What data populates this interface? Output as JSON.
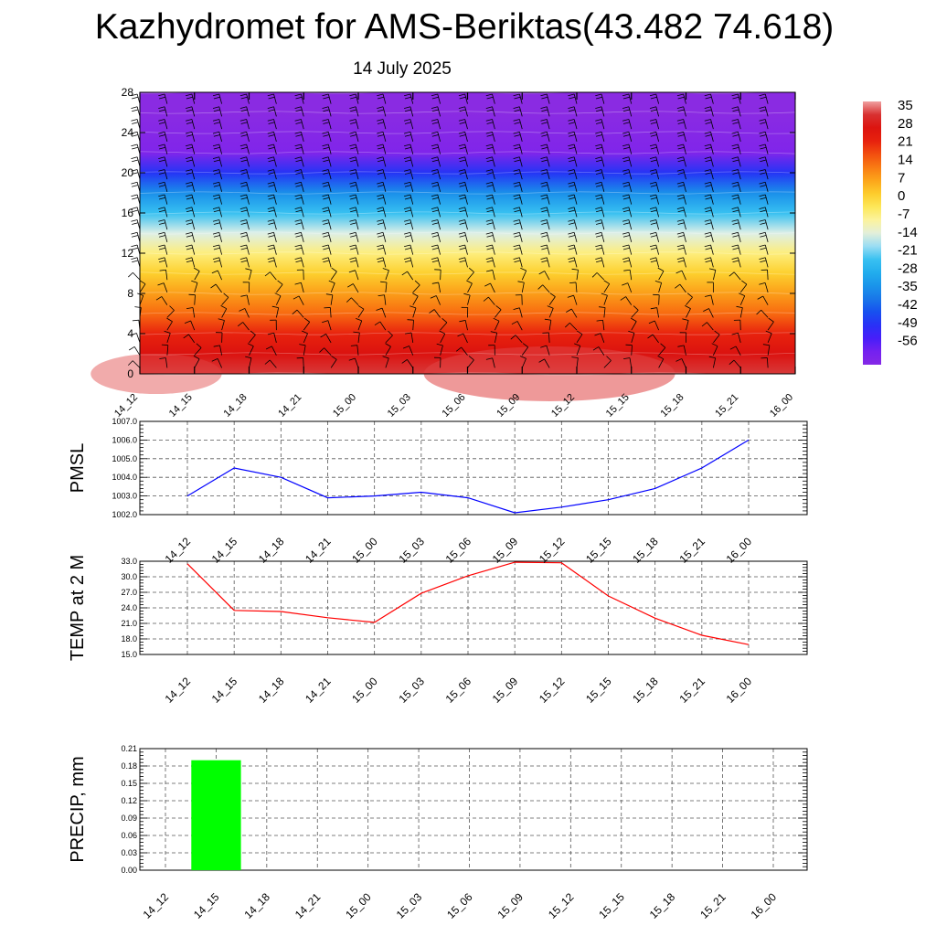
{
  "title": "Kazhydromet for AMS-Beriktas(43.482 74.618)",
  "subtitle": "14 July 2025",
  "colorbar_labels": [
    "35",
    "28",
    "21",
    "14",
    "7",
    "0",
    "-7",
    "-14",
    "-21",
    "-28",
    "-35",
    "-42",
    "-49",
    "-56"
  ],
  "chart_data": [
    {
      "type": "heatmap",
      "description_vars": "temperature cross-section with wind barbs",
      "x_categories": [
        "14_12",
        "14_15",
        "14_18",
        "14_21",
        "15_00",
        "15_03",
        "15_06",
        "15_09",
        "15_12",
        "15_15",
        "15_18",
        "15_21",
        "16_00"
      ],
      "y_ticks": [
        "0",
        "4",
        "8",
        "12",
        "16",
        "20",
        "24",
        "28"
      ],
      "ylim": [
        0,
        28
      ],
      "levels": [
        0,
        2,
        4,
        6,
        8,
        10,
        12,
        14,
        16,
        18,
        20,
        22,
        24,
        26,
        28
      ],
      "values_at_levels": [
        32,
        27,
        21,
        14,
        8,
        2,
        -5,
        -13,
        -22,
        -32,
        -45,
        -58,
        -60,
        -62,
        -64
      ],
      "colorbar_range": [
        -60,
        36
      ],
      "colorbar_ticks": [
        35,
        28,
        21,
        14,
        7,
        0,
        -7,
        -14,
        -21,
        -28,
        -35,
        -42,
        -49,
        -56
      ]
    },
    {
      "type": "line",
      "ylabel": "PMSL",
      "categories": [
        "14_12",
        "14_15",
        "14_18",
        "14_21",
        "15_00",
        "15_03",
        "15_06",
        "15_09",
        "15_12",
        "15_15",
        "15_18",
        "15_21",
        "16_00"
      ],
      "values": [
        1003.0,
        1004.5,
        1004.0,
        1002.9,
        1003.0,
        1003.2,
        1002.9,
        1002.1,
        1002.4,
        1002.8,
        1003.4,
        1004.5,
        1006.0
      ],
      "ylim": [
        1002.0,
        1007.0
      ],
      "y_tick_labels": [
        "1002.0",
        "1003.0",
        "1004.0",
        "1005.0",
        "1006.0",
        "1007.0"
      ],
      "color": "#0000ff",
      "grid": true
    },
    {
      "type": "line",
      "ylabel": "TEMP at 2 M",
      "categories": [
        "14_12",
        "14_15",
        "14_18",
        "14_21",
        "15_00",
        "15_03",
        "15_06",
        "15_09",
        "15_12",
        "15_15",
        "15_18",
        "15_21",
        "16_00"
      ],
      "values": [
        32.5,
        23.5,
        23.3,
        22.1,
        21.2,
        26.8,
        30.2,
        32.8,
        32.7,
        26.3,
        22.0,
        18.7,
        16.9
      ],
      "ylim": [
        15.0,
        33.0
      ],
      "y_tick_labels": [
        "15.0",
        "18.0",
        "21.0",
        "24.0",
        "27.0",
        "30.0",
        "33.0"
      ],
      "color": "#ff0000",
      "grid": true
    },
    {
      "type": "bar",
      "ylabel": "PRECIP, mm",
      "categories": [
        "14_12",
        "14_15",
        "14_18",
        "14_21",
        "15_00",
        "15_03",
        "15_06",
        "15_09",
        "15_12",
        "15_15",
        "15_18",
        "15_21",
        "16_00"
      ],
      "values": [
        0,
        0.19,
        0,
        0,
        0,
        0,
        0,
        0,
        0,
        0,
        0,
        0,
        0
      ],
      "ylim": [
        0,
        0.21
      ],
      "y_tick_labels": [
        "0.00",
        "0.03",
        "0.06",
        "0.09",
        "0.12",
        "0.15",
        "0.18",
        "0.21"
      ],
      "color": "#00ff00",
      "grid": true
    }
  ]
}
